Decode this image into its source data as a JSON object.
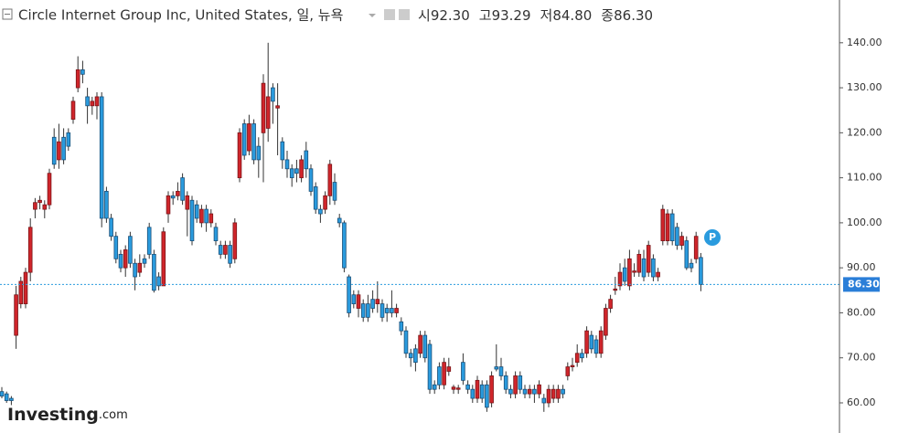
{
  "chart_data": {
    "type": "candlestick",
    "title": "Circle Internet Group Inc, United States, 일, 뉴욕",
    "header": [
      {
        "prefix": "시",
        "value": 92.3,
        "label": "92.30"
      },
      {
        "prefix": "고",
        "value": 93.29,
        "label": "93.29"
      },
      {
        "prefix": "저",
        "value": 84.8,
        "label": "84.80"
      },
      {
        "prefix": "종",
        "value": 86.3,
        "label": "86.30"
      }
    ],
    "marker_label": "P",
    "logo": {
      "main": "Investing",
      "suffix": ".com"
    },
    "up_color": "#d0252b",
    "down_color": "#2a9bde",
    "ylim": [
      53.3,
      149.5
    ],
    "yticks": [
      {
        "value": 60,
        "label": "60.00"
      },
      {
        "value": 70,
        "label": "70.00"
      },
      {
        "value": 80,
        "label": "80.00"
      },
      {
        "value": 90,
        "label": "90.00"
      },
      {
        "value": 100,
        "label": "100.00"
      },
      {
        "value": 110,
        "label": "110.00"
      },
      {
        "value": 120,
        "label": "120.00"
      },
      {
        "value": 130,
        "label": "130.00"
      },
      {
        "value": 140,
        "label": "140.00"
      }
    ],
    "last_price": {
      "value": 86.3,
      "label": "86.30"
    },
    "open": [
      62.5,
      62,
      61,
      75,
      82,
      82,
      89,
      103,
      104.5,
      103,
      104,
      119,
      114,
      119,
      120,
      123,
      130,
      134,
      128,
      126,
      126,
      128,
      107,
      101,
      97,
      93,
      90,
      97,
      91,
      89,
      92,
      99,
      93,
      88,
      86,
      102,
      106,
      106,
      110,
      103,
      105,
      104,
      100,
      103,
      100,
      99,
      95,
      93,
      95,
      92,
      110,
      122,
      116,
      122,
      117,
      120,
      121,
      130,
      125.5,
      118,
      114,
      112,
      112,
      110,
      116,
      112,
      108,
      103,
      103,
      106,
      109,
      101,
      100,
      88,
      84,
      81,
      82,
      82,
      83,
      82,
      82,
      81,
      81,
      80,
      78,
      76,
      71,
      72,
      71,
      75,
      73,
      64,
      68,
      64,
      67,
      63,
      63,
      69,
      64,
      63,
      61,
      64,
      64,
      60,
      68,
      68,
      66,
      63,
      62,
      66,
      63,
      62,
      63,
      62,
      61,
      60,
      61,
      61,
      63,
      66,
      68,
      69,
      71,
      71,
      75,
      74,
      71,
      75,
      81,
      85,
      86,
      90,
      86,
      89,
      89,
      92,
      89,
      92,
      88,
      96,
      96,
      102,
      99,
      95,
      96,
      91,
      92,
      92.3
    ],
    "high": [
      63.5,
      62.5,
      61.5,
      86,
      88,
      90,
      101,
      105.5,
      106,
      105,
      112,
      121,
      122,
      121,
      121,
      128,
      137,
      136,
      130,
      128,
      129,
      129,
      108,
      102,
      98,
      94,
      95,
      98,
      92,
      93,
      93,
      100,
      94,
      89,
      99,
      107,
      107,
      109,
      111,
      107,
      106,
      105,
      104,
      104,
      103,
      100,
      96,
      96,
      96,
      101,
      121,
      123,
      124,
      123,
      119,
      133,
      140,
      131,
      131,
      119,
      116,
      113,
      114,
      115,
      118,
      113,
      109,
      104,
      107,
      114,
      111,
      102,
      100.5,
      88.5,
      85,
      85,
      83,
      84,
      85,
      87,
      83,
      82,
      85,
      82,
      79,
      77,
      72,
      73,
      76,
      76,
      74,
      65,
      69,
      70,
      70,
      64,
      64,
      71,
      65,
      64,
      66,
      65,
      65,
      67,
      73,
      70,
      67,
      64,
      67,
      67,
      64,
      64,
      64,
      65,
      62,
      64,
      64,
      64,
      64,
      69,
      70,
      73,
      72,
      77,
      76,
      75,
      77,
      82,
      84,
      88,
      91,
      92,
      94,
      91,
      94,
      94,
      96,
      93,
      90,
      104,
      103,
      103,
      100,
      98,
      97,
      92,
      98,
      93.29
    ],
    "low": [
      61,
      60,
      59.5,
      72,
      81,
      81,
      87,
      101,
      103,
      101,
      103,
      112,
      112,
      113,
      116,
      122,
      129,
      131,
      122,
      124,
      123,
      99,
      100,
      96,
      91,
      89,
      88,
      90,
      85,
      88,
      90,
      92,
      84.5,
      85,
      86,
      100,
      104,
      105,
      104,
      97,
      95,
      100,
      99,
      98,
      99,
      95,
      92,
      92,
      90,
      91,
      109,
      114,
      115,
      113,
      110,
      109,
      118,
      122,
      115,
      112,
      110,
      108,
      109,
      109,
      110,
      106,
      102,
      100,
      102,
      104,
      104,
      99,
      89,
      79,
      81,
      79,
      78,
      78,
      80,
      80,
      78,
      78,
      79,
      79,
      75,
      70,
      68,
      67,
      70,
      69,
      62,
      62,
      63,
      63,
      66,
      62,
      62,
      64,
      62,
      60,
      60,
      60,
      58,
      59,
      67,
      65,
      62,
      61,
      61,
      62,
      61,
      61,
      60,
      61,
      58,
      59,
      60,
      60,
      61,
      65,
      67,
      68,
      69,
      70,
      71,
      70,
      70,
      74,
      80,
      84,
      85,
      86,
      85,
      88,
      88,
      87,
      88,
      87,
      87,
      95,
      95,
      95,
      94,
      94,
      89.5,
      89,
      91,
      84.8
    ],
    "close": [
      61.5,
      60.5,
      60.5,
      84,
      87,
      89,
      99,
      104.5,
      105,
      104,
      111,
      113,
      118,
      114,
      117,
      127,
      134,
      133,
      126,
      127,
      128,
      101,
      101,
      97,
      92,
      90,
      94,
      91,
      88,
      91,
      91,
      93,
      85,
      86,
      98,
      106,
      105.5,
      107,
      105,
      106,
      96,
      101,
      103,
      100,
      102,
      96,
      93,
      95,
      91,
      100,
      120,
      115,
      122,
      114,
      114,
      131,
      128,
      127,
      126,
      114,
      112,
      110,
      111,
      114,
      112,
      107,
      103,
      102,
      106,
      113,
      105,
      100,
      90,
      80,
      82,
      84,
      79,
      79,
      81,
      83,
      79,
      80,
      80,
      81,
      76,
      71,
      70,
      69,
      75,
      70,
      63,
      63,
      64,
      69,
      68,
      63.5,
      63.3,
      65,
      63,
      61,
      65,
      61,
      59,
      66,
      67.5,
      66,
      63,
      62,
      66,
      63,
      62,
      63,
      62,
      64,
      60,
      63,
      63,
      63,
      62,
      68,
      68.3,
      71,
      70,
      76,
      72,
      71,
      76,
      81,
      83,
      85.3,
      89,
      87,
      92,
      89.3,
      93,
      88,
      95,
      88,
      89,
      103,
      102,
      96,
      95,
      97,
      90,
      90,
      97,
      86.3
    ]
  }
}
